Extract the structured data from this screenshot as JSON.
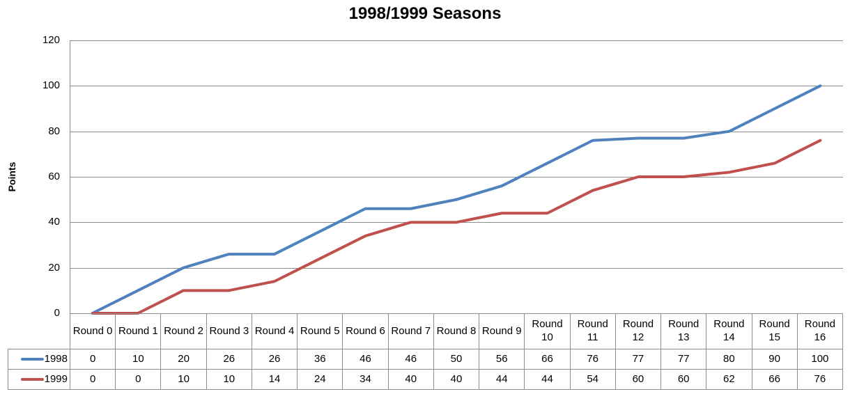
{
  "title": "1998/1999 Seasons",
  "chart_data": {
    "type": "line",
    "title": "1998/1999 Seasons",
    "xlabel": "",
    "ylabel": "Points",
    "categories": [
      "Round 0",
      "Round 1",
      "Round 2",
      "Round 3",
      "Round 4",
      "Round 5",
      "Round 6",
      "Round 7",
      "Round 8",
      "Round 9",
      "Round 10",
      "Round 11",
      "Round 12",
      "Round 13",
      "Round 14",
      "Round 15",
      "Round 16"
    ],
    "series": [
      {
        "name": "1998",
        "color": "#4F81BD",
        "values": [
          0,
          10,
          20,
          26,
          26,
          36,
          46,
          46,
          50,
          56,
          66,
          76,
          77,
          77,
          80,
          90,
          100
        ]
      },
      {
        "name": "1999",
        "color": "#C0504D",
        "values": [
          0,
          0,
          10,
          10,
          14,
          24,
          34,
          40,
          40,
          44,
          44,
          54,
          60,
          60,
          62,
          66,
          76
        ]
      }
    ],
    "ylim": [
      0,
      120
    ],
    "yticks": [
      0,
      20,
      40,
      60,
      80,
      100,
      120
    ],
    "grid": true,
    "legend_position": "table-left",
    "grid_color": "#8C8C8C",
    "axis_color": "#8C8C8C",
    "table_border_color": "#8C8C8C",
    "text_color": "#000000"
  }
}
